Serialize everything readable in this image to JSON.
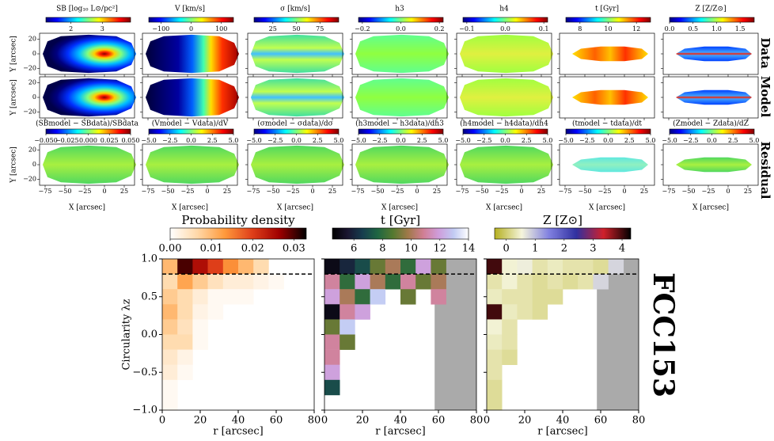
{
  "figure_label": "FCC153",
  "row_labels": [
    "Data",
    "Model",
    "Residual"
  ],
  "map_cmap": [
    "#00007f",
    "#0000ff",
    "#007fff",
    "#00ffff",
    "#7fff7f",
    "#ffff00",
    "#ff7f00",
    "#ff0000",
    "#7f0000"
  ],
  "chart_data": [
    {
      "type": "map",
      "title": "SB [log₁₀ L⊙/pc²]",
      "cbar_lim": [
        1.2,
        3.9
      ],
      "cbar_ticks": [
        2,
        3
      ],
      "residual_title": "(SBmodel − SBdata)/SBdata",
      "residual_cbar_lim": [
        -0.05,
        0.05
      ],
      "residual_cbar_ticks": [
        {
          "value": -0.05,
          "label": "−0.050"
        },
        {
          "value": -0.025,
          "label": "−0.025"
        },
        {
          "value": 0,
          "label": "0.000"
        },
        {
          "value": 0.025,
          "label": "0.025"
        },
        {
          "value": 0.05,
          "label": "0.050"
        }
      ],
      "xlim": [
        -82,
        38
      ],
      "ylim": [
        -28,
        28
      ],
      "xticks": [
        {
          "value": -75,
          "label": "−75"
        },
        {
          "value": -50,
          "label": "−50"
        },
        {
          "value": -25,
          "label": "−25"
        },
        0,
        25
      ],
      "yticks": [
        20,
        0,
        {
          "value": -20,
          "label": "−20"
        }
      ],
      "xlabel": "X [arcsec]",
      "ylabel": "Y [arcsec]"
    },
    {
      "type": "map",
      "title": "V [km/s]",
      "cbar_lim": [
        -140,
        140
      ],
      "cbar_ticks": [
        {
          "value": -100,
          "label": "−100"
        },
        0,
        100
      ],
      "residual_title": "(Vmodel − Vdata)/dV",
      "residual_cbar_lim": [
        -5,
        5
      ],
      "residual_cbar_ticks": [
        {
          "value": -5,
          "label": "−5.0"
        },
        {
          "value": -2.5,
          "label": "−2.5"
        },
        {
          "value": 0,
          "label": "0.0"
        },
        {
          "value": 2.5,
          "label": "2.5"
        },
        {
          "value": 5,
          "label": "5.0"
        }
      ],
      "xlim": [
        -82,
        38
      ],
      "ylim": [
        -28,
        28
      ],
      "xticks": [
        {
          "value": -75,
          "label": "−75"
        },
        {
          "value": -50,
          "label": "−50"
        },
        {
          "value": -25,
          "label": "−25"
        },
        0,
        25
      ],
      "yticks": [
        20,
        0,
        {
          "value": -20,
          "label": "−20"
        }
      ],
      "xlabel": "X [arcsec]"
    },
    {
      "type": "map",
      "title": "σ [km/s]",
      "cbar_lim": [
        5,
        95
      ],
      "cbar_ticks": [
        25,
        50,
        75
      ],
      "residual_title": "(σmodel − σdata)/dσ",
      "residual_cbar_lim": [
        -5,
        5
      ],
      "residual_cbar_ticks": [
        {
          "value": -5,
          "label": "−5.0"
        },
        {
          "value": -2.5,
          "label": "−2.5"
        },
        {
          "value": 0,
          "label": "0.0"
        },
        {
          "value": 2.5,
          "label": "2.5"
        },
        {
          "value": 5,
          "label": "5.0"
        }
      ],
      "xlim": [
        -82,
        38
      ],
      "ylim": [
        -28,
        28
      ],
      "xticks": [
        {
          "value": -75,
          "label": "−75"
        },
        {
          "value": -50,
          "label": "−50"
        },
        {
          "value": -25,
          "label": "−25"
        },
        0,
        25
      ],
      "yticks": [
        20,
        0,
        {
          "value": -20,
          "label": "−20"
        }
      ],
      "xlabel": "X [arcsec]"
    },
    {
      "type": "map",
      "title": "h3",
      "cbar_lim": [
        -0.22,
        0.22
      ],
      "cbar_ticks": [
        {
          "value": -0.2,
          "label": "−0.2"
        },
        {
          "value": 0,
          "label": "0.0"
        },
        {
          "value": 0.2,
          "label": "0.2"
        }
      ],
      "residual_title": "(h3model − h3data)/dh3",
      "residual_cbar_lim": [
        -5,
        5
      ],
      "residual_cbar_ticks": [
        {
          "value": -5,
          "label": "−5.0"
        },
        {
          "value": -2.5,
          "label": "−2.5"
        },
        {
          "value": 0,
          "label": "0.0"
        },
        {
          "value": 2.5,
          "label": "2.5"
        },
        {
          "value": 5,
          "label": "5.0"
        }
      ],
      "xlim": [
        -82,
        38
      ],
      "ylim": [
        -28,
        28
      ],
      "xticks": [
        {
          "value": -75,
          "label": "−75"
        },
        {
          "value": -50,
          "label": "−50"
        },
        {
          "value": -25,
          "label": "−25"
        },
        0,
        25
      ],
      "yticks": [
        20,
        0,
        {
          "value": -20,
          "label": "−20"
        }
      ],
      "xlabel": "X [arcsec]"
    },
    {
      "type": "map",
      "title": "h4",
      "cbar_lim": [
        -0.11,
        0.11
      ],
      "cbar_ticks": [
        {
          "value": -0.1,
          "label": "−0.1"
        },
        {
          "value": 0,
          "label": "0.0"
        },
        {
          "value": 0.1,
          "label": "0.1"
        }
      ],
      "residual_title": "(h4model − h4data)/dh4",
      "residual_cbar_lim": [
        -5,
        5
      ],
      "residual_cbar_ticks": [
        {
          "value": -5,
          "label": "−5.0"
        },
        {
          "value": -2.5,
          "label": "−2.5"
        },
        {
          "value": 0,
          "label": "0.0"
        },
        {
          "value": 2.5,
          "label": "2.5"
        },
        {
          "value": 5,
          "label": "5.0"
        }
      ],
      "xlim": [
        -82,
        38
      ],
      "ylim": [
        -28,
        28
      ],
      "xticks": [
        {
          "value": -75,
          "label": "−75"
        },
        {
          "value": -50,
          "label": "−50"
        },
        {
          "value": -25,
          "label": "−25"
        },
        0,
        25
      ],
      "yticks": [
        20,
        0,
        {
          "value": -20,
          "label": "−20"
        }
      ],
      "xlabel": "X [arcsec]"
    },
    {
      "type": "map",
      "title": "t [Gyr]",
      "cbar_lim": [
        7,
        13
      ],
      "cbar_ticks": [
        8,
        10,
        12
      ],
      "residual_title": "(tmodel − tdata)/dt",
      "residual_cbar_lim": [
        -5,
        5
      ],
      "residual_cbar_ticks": [
        {
          "value": -5,
          "label": "−5.0"
        },
        {
          "value": -2.5,
          "label": "−2.5"
        },
        {
          "value": 0,
          "label": "0.0"
        },
        {
          "value": 2.5,
          "label": "2.5"
        },
        {
          "value": 5,
          "label": "5.0"
        }
      ],
      "xlim": [
        -82,
        38
      ],
      "ylim": [
        -28,
        28
      ],
      "xticks": [
        {
          "value": -75,
          "label": "−75"
        },
        {
          "value": -50,
          "label": "−50"
        },
        {
          "value": -25,
          "label": "−25"
        },
        0,
        25
      ],
      "yticks": [
        20,
        0,
        {
          "value": -20,
          "label": "−20"
        }
      ],
      "xlabel": "X [arcsec]"
    },
    {
      "type": "map",
      "title": "Z [Z/Z⊙]",
      "cbar_lim": [
        0,
        1.8
      ],
      "cbar_ticks": [
        {
          "value": 0,
          "label": "0.0"
        },
        {
          "value": 0.5,
          "label": "0.5"
        },
        {
          "value": 1,
          "label": "1.0"
        },
        {
          "value": 1.5,
          "label": "1.5"
        }
      ],
      "residual_title": "(Zmodel − Zdata)/dZ",
      "residual_cbar_lim": [
        -5,
        5
      ],
      "residual_cbar_ticks": [
        {
          "value": -5,
          "label": "−5.0"
        },
        {
          "value": -2.5,
          "label": "−2.5"
        },
        {
          "value": 0,
          "label": "0.0"
        },
        {
          "value": 2.5,
          "label": "2.5"
        },
        {
          "value": 5,
          "label": "5.0"
        }
      ],
      "xlim": [
        -82,
        38
      ],
      "ylim": [
        -28,
        28
      ],
      "xticks": [
        {
          "value": -75,
          "label": "−75"
        },
        {
          "value": -50,
          "label": "−50"
        },
        {
          "value": -25,
          "label": "−25"
        },
        0,
        25
      ],
      "yticks": [
        20,
        0,
        {
          "value": -20,
          "label": "−20"
        }
      ],
      "xlabel": "X [arcsec]"
    },
    {
      "type": "heatmap",
      "cbar_label": "Probability density",
      "cbar_lim": [
        0,
        0.033
      ],
      "cbar_ticks": [
        {
          "value": 0,
          "label": "0.00"
        },
        {
          "value": 0.01,
          "label": "0.01"
        },
        {
          "value": 0.02,
          "label": "0.02"
        },
        {
          "value": 0.03,
          "label": "0.03"
        }
      ],
      "cmap": [
        "#ffffff",
        "#ffd8a8",
        "#ff9a3c",
        "#e0401a",
        "#a00000",
        "#000000"
      ],
      "xlim": [
        0,
        80
      ],
      "ylim": [
        -1,
        1
      ],
      "xticks": [
        0,
        20,
        40,
        60,
        80
      ],
      "yticks": [
        {
          "value": -1,
          "label": "−1.0"
        },
        {
          "value": -0.5,
          "label": "−0.5"
        },
        {
          "value": 0,
          "label": "0.0"
        },
        {
          "value": 0.5,
          "label": "0.5"
        },
        {
          "value": 1,
          "label": "1.0"
        }
      ],
      "xlabel": "r [arcsec]",
      "ylabel": "Circularity λz",
      "hline": 0.8,
      "values": [
        [
          0.01,
          0.03,
          0.025,
          0.02,
          0.014,
          0.01,
          0.006,
          null,
          null,
          null
        ],
        [
          0.006,
          0.012,
          0.008,
          0.005,
          0.003,
          0.003,
          0.002,
          0.001,
          null,
          null
        ],
        [
          0.008,
          0.006,
          0.003,
          0.001,
          0.001,
          0.001,
          null,
          null,
          null,
          null
        ],
        [
          0.01,
          0.006,
          0.002,
          0.001,
          null,
          null,
          null,
          null,
          null,
          null
        ],
        [
          0.008,
          0.005,
          0.001,
          null,
          null,
          null,
          null,
          null,
          null,
          null
        ],
        [
          0.006,
          0.006,
          0.001,
          null,
          null,
          null,
          null,
          null,
          null,
          null
        ],
        [
          0.004,
          0.002,
          null,
          null,
          null,
          null,
          null,
          null,
          null,
          null
        ],
        [
          0.003,
          0.001,
          null,
          null,
          null,
          null,
          null,
          null,
          null,
          null
        ],
        [
          0.001,
          null,
          null,
          null,
          null,
          null,
          null,
          null,
          null,
          null
        ],
        [
          0.001,
          null,
          null,
          null,
          null,
          null,
          null,
          null,
          null,
          null
        ]
      ]
    },
    {
      "type": "heatmap",
      "cbar_label": "t [Gyr]",
      "cbar_lim": [
        4.5,
        14
      ],
      "cbar_ticks": [
        6,
        8,
        10,
        12,
        14
      ],
      "cmap": [
        "#000000",
        "#1a1530",
        "#163d4e",
        "#1f6642",
        "#54792f",
        "#a07949",
        "#d07e93",
        "#cf9cda",
        "#c1caf3",
        "#ffffff"
      ],
      "xlim": [
        0,
        80
      ],
      "ylim": [
        -1,
        1
      ],
      "xticks": [
        0,
        20,
        40,
        60,
        80
      ],
      "xlabel": "r [arcsec]",
      "hline": 0.8,
      "mask_from": 58,
      "values": [
        [
          5,
          6,
          7,
          9,
          10,
          8,
          12,
          9,
          null,
          null
        ],
        [
          11,
          8,
          12,
          10,
          8,
          11,
          9,
          10,
          null,
          null
        ],
        [
          12,
          10,
          8,
          13,
          null,
          9,
          null,
          11,
          null,
          null
        ],
        [
          5,
          11,
          12,
          null,
          null,
          null,
          null,
          null,
          null,
          null
        ],
        [
          9,
          13,
          null,
          null,
          null,
          null,
          null,
          null,
          null,
          null
        ],
        [
          11,
          9,
          null,
          null,
          null,
          null,
          null,
          null,
          null,
          null
        ],
        [
          11,
          null,
          null,
          null,
          null,
          null,
          null,
          null,
          null,
          null
        ],
        [
          12,
          null,
          null,
          null,
          null,
          null,
          null,
          null,
          null,
          null
        ],
        [
          7,
          null,
          null,
          null,
          null,
          null,
          null,
          null,
          null,
          null
        ],
        [
          null,
          null,
          null,
          null,
          null,
          null,
          null,
          null,
          null,
          null
        ]
      ]
    },
    {
      "type": "heatmap",
      "cbar_label": "Z [Z⊙]",
      "cbar_lim": [
        -0.4,
        4.3
      ],
      "cbar_ticks": [
        0,
        1,
        2,
        3,
        4
      ],
      "cmap": [
        "#b5b020",
        "#f5f5dc",
        "#8080e0",
        "#3030a0",
        "#d0202a",
        "#000000"
      ],
      "xlim": [
        0,
        80
      ],
      "ylim": [
        -1,
        1
      ],
      "xticks": [
        0,
        20,
        40,
        60,
        80
      ],
      "xlabel": "r [arcsec]",
      "hline": 0.8,
      "mask_from": 58,
      "values": [
        [
          4,
          0.5,
          0.6,
          0.3,
          0.4,
          0.3,
          0.3,
          0.2,
          0.8,
          null
        ],
        [
          0.3,
          0.5,
          0.3,
          0.2,
          0.3,
          0.2,
          0.3,
          0.8,
          null,
          null
        ],
        [
          0.4,
          0.3,
          0.3,
          0.2,
          0.2,
          null,
          null,
          null,
          null,
          null
        ],
        [
          4,
          0.4,
          0.3,
          0.2,
          null,
          null,
          null,
          null,
          null,
          null
        ],
        [
          0.5,
          0.3,
          null,
          null,
          null,
          null,
          null,
          null,
          null,
          null
        ],
        [
          0.4,
          0.3,
          null,
          null,
          null,
          null,
          null,
          null,
          null,
          null
        ],
        [
          0.3,
          0.2,
          null,
          null,
          null,
          null,
          null,
          null,
          null,
          null
        ],
        [
          0.3,
          null,
          null,
          null,
          null,
          null,
          null,
          null,
          null,
          null
        ],
        [
          0.2,
          null,
          null,
          null,
          null,
          null,
          null,
          null,
          null,
          null
        ],
        [
          0.2,
          null,
          null,
          null,
          null,
          null,
          null,
          null,
          null,
          null
        ]
      ]
    }
  ]
}
